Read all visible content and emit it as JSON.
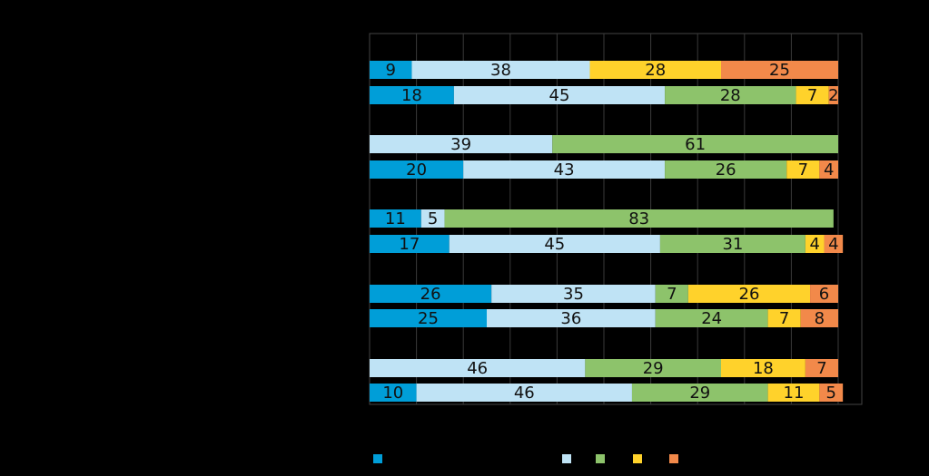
{
  "chart_data": {
    "type": "bar",
    "orientation": "horizontal",
    "stacked": true,
    "percent": true,
    "xlim": [
      0,
      100
    ],
    "grid": true,
    "legend_position": "bottom",
    "series": [
      {
        "name": "",
        "color": "#009ED8"
      },
      {
        "name": "",
        "color": "#BFE3F5"
      },
      {
        "name": "",
        "color": "#8DC36B"
      },
      {
        "name": "",
        "color": "#FFD22B"
      },
      {
        "name": "",
        "color": "#F2894A"
      }
    ],
    "rows": [
      {
        "values": [
          9,
          38,
          0,
          28,
          25
        ],
        "labels": [
          "9",
          "38",
          "",
          "28",
          "25"
        ]
      },
      {
        "values": [
          18,
          45,
          28,
          7,
          2
        ],
        "labels": [
          "18",
          "45",
          "28",
          "7",
          "2"
        ]
      },
      {
        "values": [
          0,
          39,
          61,
          0,
          0
        ],
        "labels": [
          "",
          "39",
          "61",
          "",
          ""
        ]
      },
      {
        "values": [
          20,
          43,
          26,
          7,
          4
        ],
        "labels": [
          "20",
          "43",
          "26",
          "7",
          "4"
        ]
      },
      {
        "values": [
          11,
          5,
          83,
          0,
          0
        ],
        "labels": [
          "11",
          "5",
          "83",
          "",
          ""
        ]
      },
      {
        "values": [
          17,
          45,
          31,
          4,
          4
        ],
        "labels": [
          "17",
          "45",
          "31",
          "4",
          "4"
        ]
      },
      {
        "values": [
          26,
          35,
          7,
          26,
          6
        ],
        "labels": [
          "26",
          "35",
          "7",
          "26",
          "6"
        ]
      },
      {
        "values": [
          25,
          36,
          24,
          7,
          8
        ],
        "labels": [
          "25",
          "36",
          "24",
          "7",
          "8"
        ]
      },
      {
        "values": [
          0,
          46,
          29,
          18,
          7
        ],
        "labels": [
          "",
          "46",
          "29",
          "18",
          "7"
        ]
      },
      {
        "values": [
          10,
          46,
          29,
          11,
          5
        ],
        "labels": [
          "10",
          "46",
          "29",
          "11",
          "5"
        ]
      }
    ]
  }
}
